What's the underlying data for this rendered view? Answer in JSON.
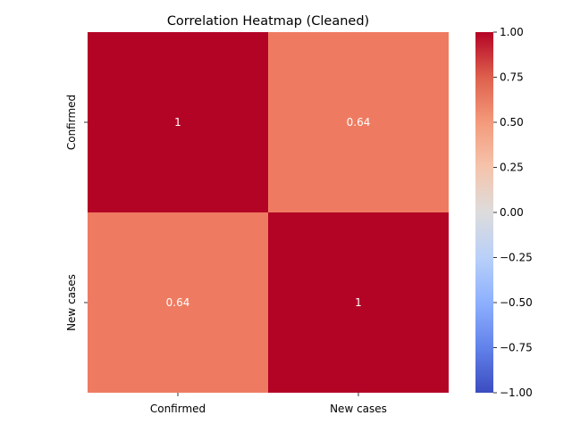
{
  "chart_data": {
    "type": "heatmap",
    "title": "Correlation Heatmap (Cleaned)",
    "x_categories": [
      "Confirmed",
      "New cases"
    ],
    "y_categories": [
      "Confirmed",
      "New cases"
    ],
    "matrix": [
      [
        1.0,
        0.64
      ],
      [
        0.64,
        1.0
      ]
    ],
    "annotations": [
      [
        "1",
        "0.64"
      ],
      [
        "0.64",
        "1"
      ]
    ],
    "colorbar": {
      "cmap": "coolwarm",
      "vmin": -1.0,
      "vmax": 1.0,
      "ticks": [
        1.0,
        0.75,
        0.5,
        0.25,
        0.0,
        -0.25,
        -0.5,
        -0.75,
        -1.0
      ],
      "tick_labels": [
        "1.00",
        "0.75",
        "0.50",
        "0.25",
        "0.00",
        "−0.25",
        "−0.50",
        "−0.75",
        "−1.00"
      ]
    },
    "colors": {
      "cell_high": "#b40426",
      "cell_mid": "#ee7b61",
      "annotation_text": "#ffffff"
    },
    "grid": false,
    "legend": "colorbar-right"
  }
}
